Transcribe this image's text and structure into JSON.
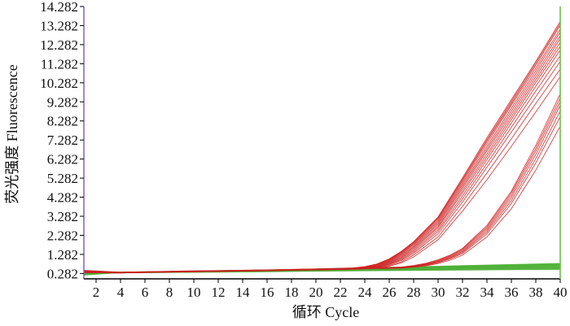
{
  "chart_data": {
    "type": "line",
    "xlabel": "循环 Cycle",
    "ylabel": "荧光强度 Fluorescence",
    "xlim": [
      1,
      40
    ],
    "ylim": [
      0,
      14.282
    ],
    "xticks": [
      2,
      4,
      6,
      8,
      10,
      12,
      14,
      16,
      18,
      20,
      22,
      24,
      26,
      28,
      30,
      32,
      34,
      36,
      38,
      40
    ],
    "yticks": [
      0.282,
      1.282,
      2.282,
      3.282,
      4.282,
      5.282,
      6.282,
      7.282,
      8.282,
      9.282,
      10.282,
      11.282,
      12.282,
      13.282,
      14.282
    ],
    "ytick_labels": [
      "0.282",
      "1.282",
      "2.282",
      "3.282",
      "4.282",
      "5.282",
      "6.282",
      "7.282",
      "8.282",
      "9.282",
      "10.282",
      "11.282",
      "12.282",
      "13.282",
      "14.282"
    ],
    "grid": false,
    "colors": {
      "amplification": "#cc2222",
      "negative": "#4caf36",
      "frame_left": "#8a6bb8",
      "frame_right": "#6cc04a"
    },
    "series_groups": [
      {
        "group": "early_amplification",
        "color": "#cc2222",
        "x": [
          1,
          4,
          10,
          16,
          20,
          23,
          24,
          25,
          26,
          27,
          28,
          30,
          32,
          34,
          36,
          38,
          40
        ],
        "count": 14,
        "curves": [
          [
            0.45,
            0.35,
            0.42,
            0.47,
            0.52,
            0.57,
            0.64,
            0.78,
            1.05,
            1.45,
            1.95,
            3.25,
            5.3,
            7.4,
            9.4,
            11.4,
            13.5
          ],
          [
            0.43,
            0.34,
            0.41,
            0.46,
            0.51,
            0.56,
            0.63,
            0.77,
            1.03,
            1.42,
            1.92,
            3.2,
            5.22,
            7.3,
            9.3,
            11.3,
            13.4
          ],
          [
            0.41,
            0.34,
            0.41,
            0.46,
            0.51,
            0.56,
            0.62,
            0.76,
            1.0,
            1.4,
            1.9,
            3.15,
            5.15,
            7.22,
            9.2,
            11.2,
            13.3
          ],
          [
            0.39,
            0.33,
            0.4,
            0.45,
            0.5,
            0.55,
            0.61,
            0.74,
            0.98,
            1.36,
            1.85,
            3.08,
            5.05,
            7.1,
            9.1,
            11.05,
            13.1
          ],
          [
            0.37,
            0.33,
            0.4,
            0.45,
            0.5,
            0.55,
            0.6,
            0.72,
            0.95,
            1.32,
            1.8,
            3.0,
            4.95,
            6.95,
            8.95,
            10.9,
            12.95
          ],
          [
            0.36,
            0.33,
            0.4,
            0.45,
            0.5,
            0.54,
            0.59,
            0.7,
            0.92,
            1.27,
            1.74,
            2.92,
            4.85,
            6.82,
            8.8,
            10.75,
            12.75
          ],
          [
            0.35,
            0.32,
            0.39,
            0.44,
            0.49,
            0.54,
            0.58,
            0.68,
            0.89,
            1.22,
            1.68,
            2.85,
            4.74,
            6.7,
            8.65,
            10.6,
            12.6
          ],
          [
            0.35,
            0.32,
            0.39,
            0.44,
            0.49,
            0.53,
            0.57,
            0.66,
            0.86,
            1.17,
            1.62,
            2.76,
            4.62,
            6.55,
            8.5,
            10.45,
            12.4
          ],
          [
            0.34,
            0.32,
            0.39,
            0.44,
            0.48,
            0.53,
            0.56,
            0.64,
            0.83,
            1.12,
            1.55,
            2.68,
            4.5,
            6.4,
            8.35,
            10.3,
            12.2
          ],
          [
            0.34,
            0.32,
            0.38,
            0.43,
            0.48,
            0.52,
            0.55,
            0.62,
            0.8,
            1.07,
            1.48,
            2.58,
            4.35,
            6.25,
            8.18,
            10.1,
            12.0
          ],
          [
            0.33,
            0.31,
            0.38,
            0.43,
            0.48,
            0.52,
            0.55,
            0.61,
            0.77,
            1.02,
            1.41,
            2.48,
            4.2,
            6.05,
            7.95,
            9.85,
            11.7
          ],
          [
            0.33,
            0.31,
            0.38,
            0.43,
            0.47,
            0.51,
            0.54,
            0.6,
            0.74,
            0.97,
            1.34,
            2.36,
            4.03,
            5.85,
            7.7,
            9.55,
            11.4
          ],
          [
            0.32,
            0.31,
            0.37,
            0.42,
            0.47,
            0.51,
            0.53,
            0.58,
            0.7,
            0.9,
            1.25,
            2.2,
            3.8,
            5.55,
            7.35,
            9.2,
            11.0
          ],
          [
            0.32,
            0.31,
            0.37,
            0.42,
            0.47,
            0.5,
            0.52,
            0.56,
            0.66,
            0.84,
            1.15,
            2.05,
            3.55,
            5.2,
            6.95,
            8.75,
            10.6
          ]
        ]
      },
      {
        "group": "late_amplification",
        "color": "#cc2222",
        "x": [
          1,
          4,
          10,
          16,
          20,
          24,
          27,
          28,
          29,
          30,
          31,
          32,
          34,
          36,
          38,
          40
        ],
        "count": 7,
        "curves": [
          [
            0.4,
            0.34,
            0.41,
            0.46,
            0.51,
            0.56,
            0.62,
            0.7,
            0.82,
            1.0,
            1.25,
            1.6,
            2.8,
            4.6,
            7.0,
            9.7
          ],
          [
            0.38,
            0.34,
            0.41,
            0.46,
            0.5,
            0.55,
            0.61,
            0.68,
            0.79,
            0.97,
            1.21,
            1.55,
            2.72,
            4.5,
            6.85,
            9.5
          ],
          [
            0.37,
            0.33,
            0.4,
            0.45,
            0.5,
            0.55,
            0.6,
            0.67,
            0.77,
            0.94,
            1.17,
            1.5,
            2.64,
            4.38,
            6.7,
            9.3
          ],
          [
            0.36,
            0.33,
            0.4,
            0.45,
            0.5,
            0.54,
            0.59,
            0.66,
            0.75,
            0.91,
            1.13,
            1.44,
            2.55,
            4.25,
            6.52,
            9.1
          ],
          [
            0.35,
            0.33,
            0.4,
            0.45,
            0.49,
            0.54,
            0.58,
            0.64,
            0.73,
            0.88,
            1.09,
            1.39,
            2.46,
            4.1,
            6.3,
            8.8
          ],
          [
            0.34,
            0.32,
            0.39,
            0.44,
            0.49,
            0.53,
            0.57,
            0.63,
            0.71,
            0.85,
            1.05,
            1.33,
            2.36,
            3.95,
            6.08,
            8.5
          ],
          [
            0.33,
            0.32,
            0.39,
            0.44,
            0.48,
            0.53,
            0.56,
            0.61,
            0.68,
            0.8,
            0.98,
            1.24,
            2.2,
            3.68,
            5.7,
            8.0
          ]
        ]
      },
      {
        "group": "no_amplification",
        "color": "#4caf36",
        "x": [
          1,
          4,
          10,
          16,
          20,
          24,
          28,
          32,
          36,
          40
        ],
        "count": 10,
        "curves": [
          [
            0.2,
            0.34,
            0.4,
            0.46,
            0.51,
            0.57,
            0.62,
            0.68,
            0.74,
            0.8
          ],
          [
            0.22,
            0.34,
            0.4,
            0.45,
            0.5,
            0.56,
            0.61,
            0.66,
            0.72,
            0.77
          ],
          [
            0.24,
            0.34,
            0.39,
            0.45,
            0.5,
            0.55,
            0.6,
            0.65,
            0.7,
            0.74
          ],
          [
            0.26,
            0.33,
            0.39,
            0.44,
            0.49,
            0.54,
            0.58,
            0.63,
            0.67,
            0.71
          ],
          [
            0.28,
            0.33,
            0.38,
            0.43,
            0.48,
            0.52,
            0.56,
            0.6,
            0.64,
            0.68
          ],
          [
            0.3,
            0.33,
            0.38,
            0.42,
            0.46,
            0.5,
            0.54,
            0.58,
            0.61,
            0.64
          ],
          [
            0.32,
            0.33,
            0.37,
            0.41,
            0.45,
            0.49,
            0.52,
            0.55,
            0.58,
            0.61
          ],
          [
            0.33,
            0.33,
            0.37,
            0.4,
            0.44,
            0.47,
            0.5,
            0.53,
            0.55,
            0.58
          ],
          [
            0.34,
            0.33,
            0.36,
            0.39,
            0.42,
            0.45,
            0.48,
            0.5,
            0.52,
            0.54
          ],
          [
            0.35,
            0.32,
            0.35,
            0.38,
            0.41,
            0.43,
            0.45,
            0.47,
            0.49,
            0.5
          ]
        ]
      }
    ]
  }
}
